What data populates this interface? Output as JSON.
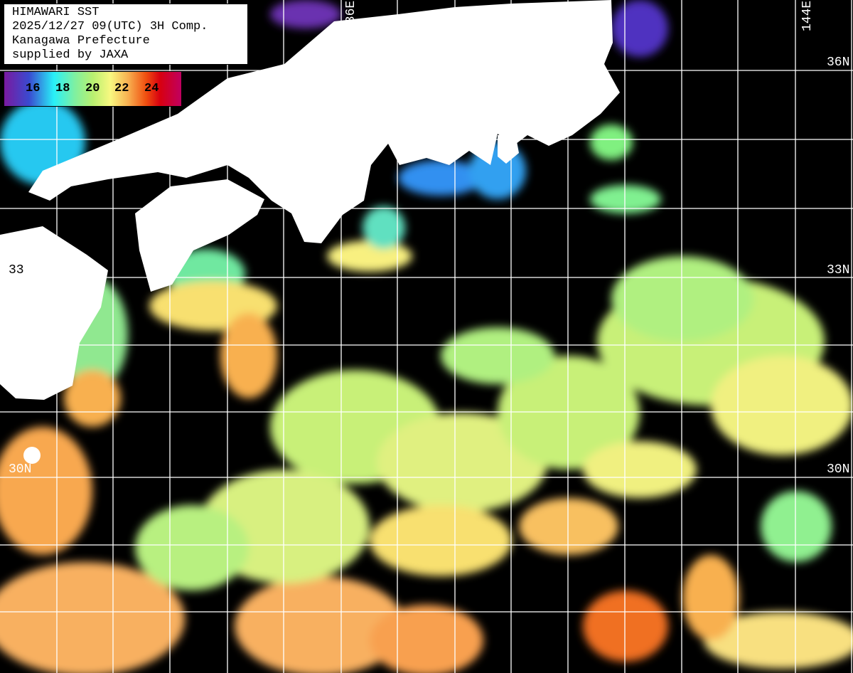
{
  "title": {
    "line1": "HIMAWARI SST",
    "line2": "2025/12/27 09(UTC) 3H Comp.",
    "line3": "Kanagawa Prefecture",
    "line4": "supplied by JAXA"
  },
  "legend": {
    "unit_values": [
      "16",
      "18",
      "20",
      "22",
      "24"
    ],
    "colors": [
      "#7a1aa0",
      "#3a4ad0",
      "#28f0f8",
      "#80f0a0",
      "#f8f880",
      "#f8b050",
      "#f05010",
      "#c00060"
    ]
  },
  "grid_labels": {
    "lon_136": "136E",
    "lon_144": "144E",
    "lat_36": "36N",
    "lat_33": "33N",
    "lat_30": "30N",
    "lat_33_left": "33",
    "lat_30_left": "30N"
  },
  "colors": {
    "land": "#ffffff",
    "no_data": "#000000",
    "grid": "#ffffff"
  }
}
